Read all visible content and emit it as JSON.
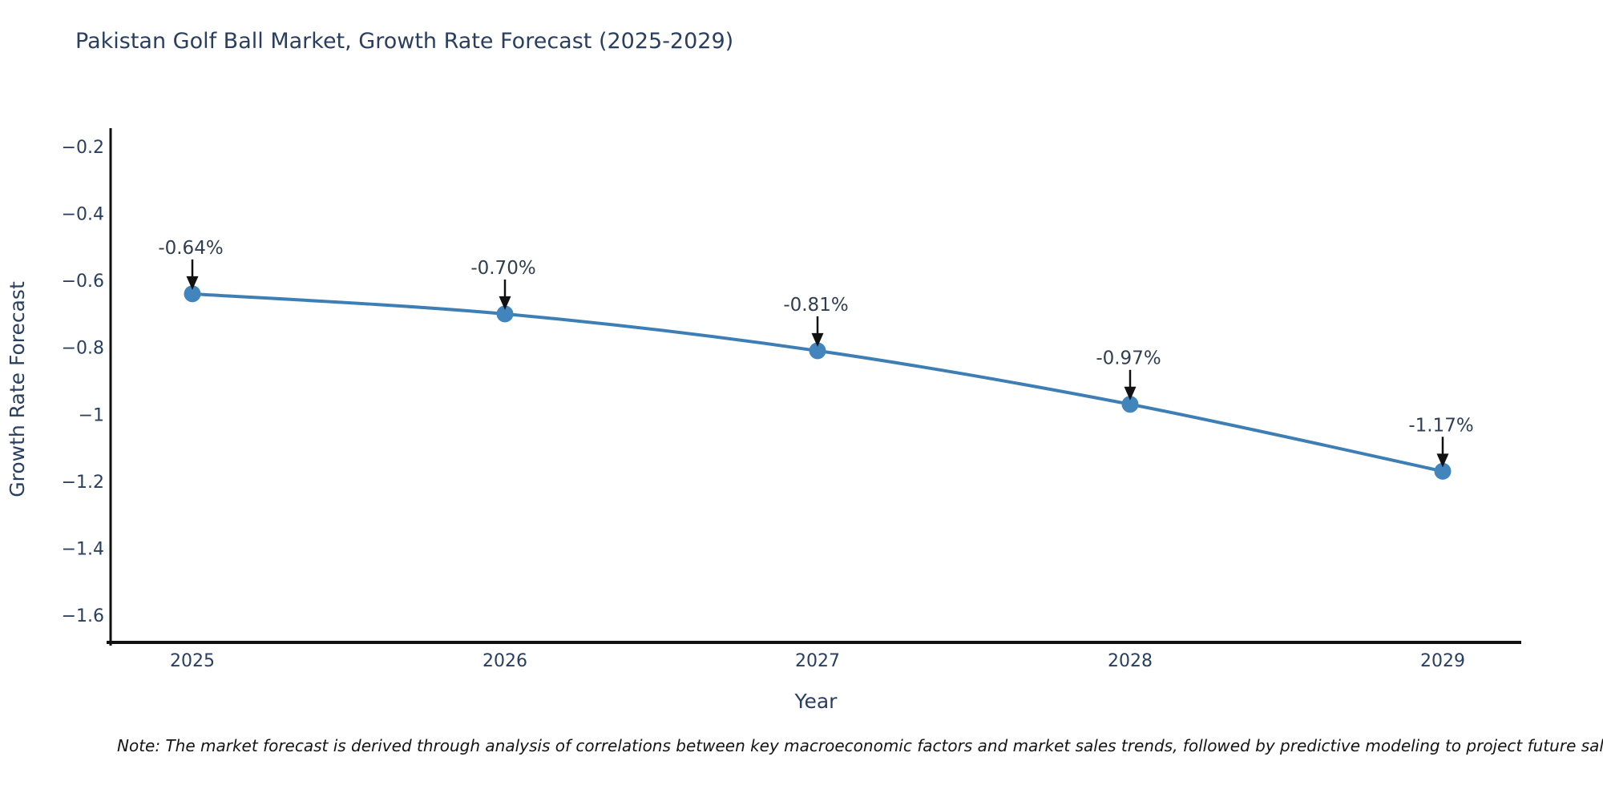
{
  "chart_data": {
    "type": "line",
    "title": "Pakistan Golf Ball Market, Growth Rate Forecast (2025-2029)",
    "xlabel": "Year",
    "ylabel": "Growth Rate Forecast",
    "categories": [
      "2025",
      "2026",
      "2027",
      "2028",
      "2029"
    ],
    "values": [
      -0.64,
      -0.7,
      -0.81,
      -0.97,
      -1.17
    ],
    "point_labels": [
      "-0.64%",
      "-0.70%",
      "-0.81%",
      "-0.97%",
      "-1.17%"
    ],
    "yticks": [
      -0.2,
      -0.4,
      -0.6,
      -0.8,
      -1,
      -1.2,
      -1.4,
      -1.6
    ],
    "ylim": [
      -1.69,
      -0.14
    ],
    "xlim": [
      2024.74,
      2029.25
    ],
    "grid": false,
    "legend": false,
    "line_shape": "spline",
    "line_color": "#3d7eb5",
    "marker_color": "#4285bd",
    "axis_color": "#111111",
    "tick_color": "#2a3f5f",
    "annotation_text_color": "#2f3f52",
    "annotation_arrow_color": "#111111"
  },
  "note": {
    "text": "Note: The market forecast is derived through analysis of correlations between key macroeconomic factors and market sales trends, followed by predictive modeling to project future sales"
  }
}
